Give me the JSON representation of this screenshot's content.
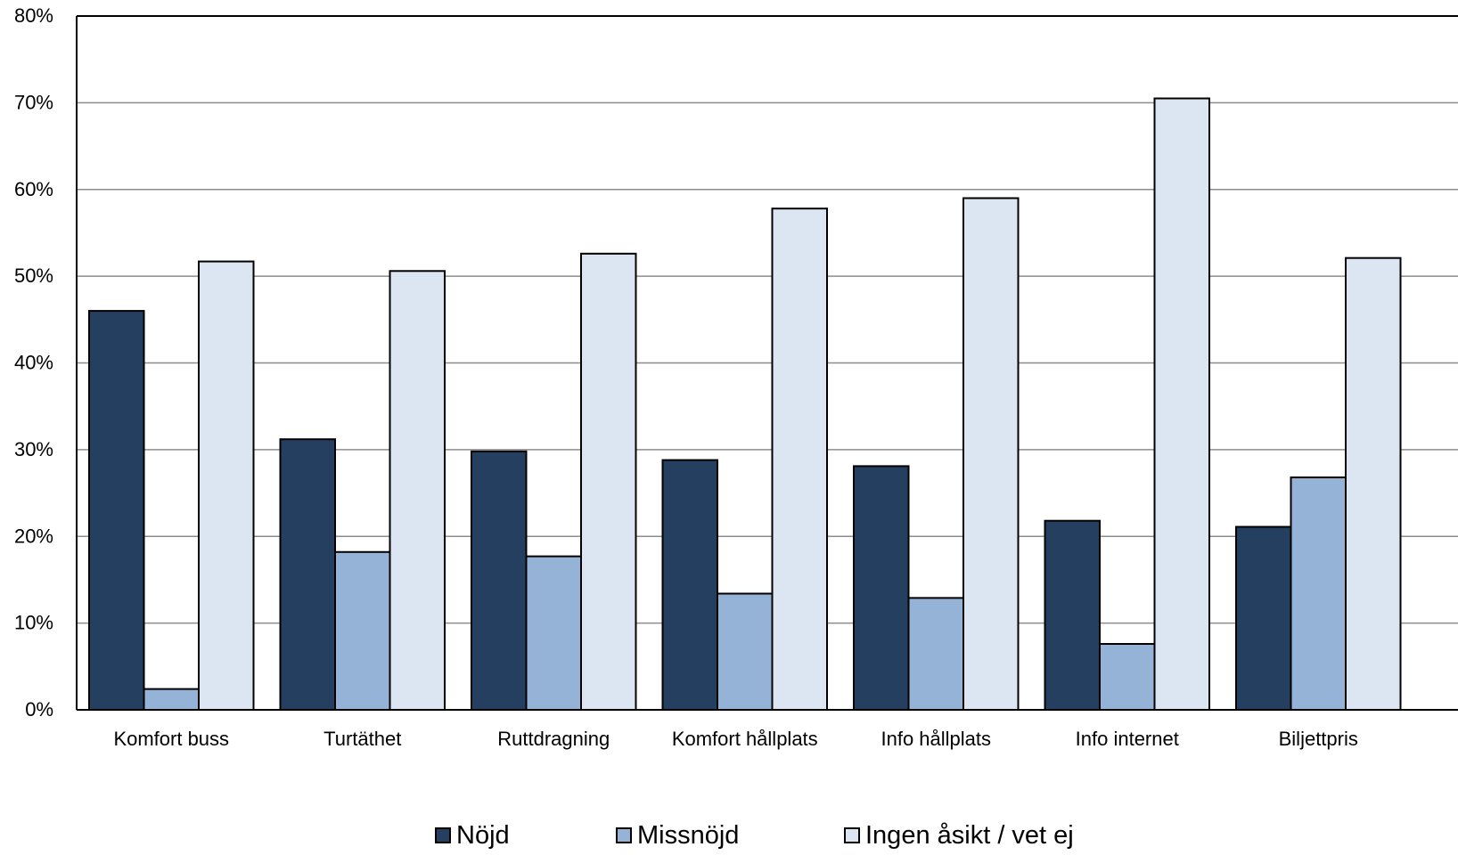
{
  "chart_data": {
    "type": "bar",
    "title": "",
    "xlabel": "",
    "ylabel": "",
    "ylim": [
      0,
      80
    ],
    "yticks": [
      "0%",
      "10%",
      "20%",
      "30%",
      "40%",
      "50%",
      "60%",
      "70%",
      "80%"
    ],
    "grid": true,
    "legend_position": "bottom",
    "categories": [
      "Komfort buss",
      "Turtäthet",
      "Ruttdragning",
      "Komfort hållplats",
      "Info hållplats",
      "Info internet",
      "Biljettpris"
    ],
    "series": [
      {
        "name": "Nöjd",
        "color": "#243f60",
        "values": [
          46.0,
          31.2,
          29.8,
          28.8,
          28.1,
          21.8,
          21.1
        ]
      },
      {
        "name": "Missnöjd",
        "color": "#95b3d7",
        "values": [
          2.4,
          18.2,
          17.7,
          13.4,
          12.9,
          7.6,
          26.8
        ]
      },
      {
        "name": "Ingen åsikt / vet ej",
        "color": "#dce6f2",
        "values": [
          51.7,
          50.6,
          52.6,
          57.8,
          59.0,
          70.5,
          52.1
        ]
      }
    ]
  }
}
